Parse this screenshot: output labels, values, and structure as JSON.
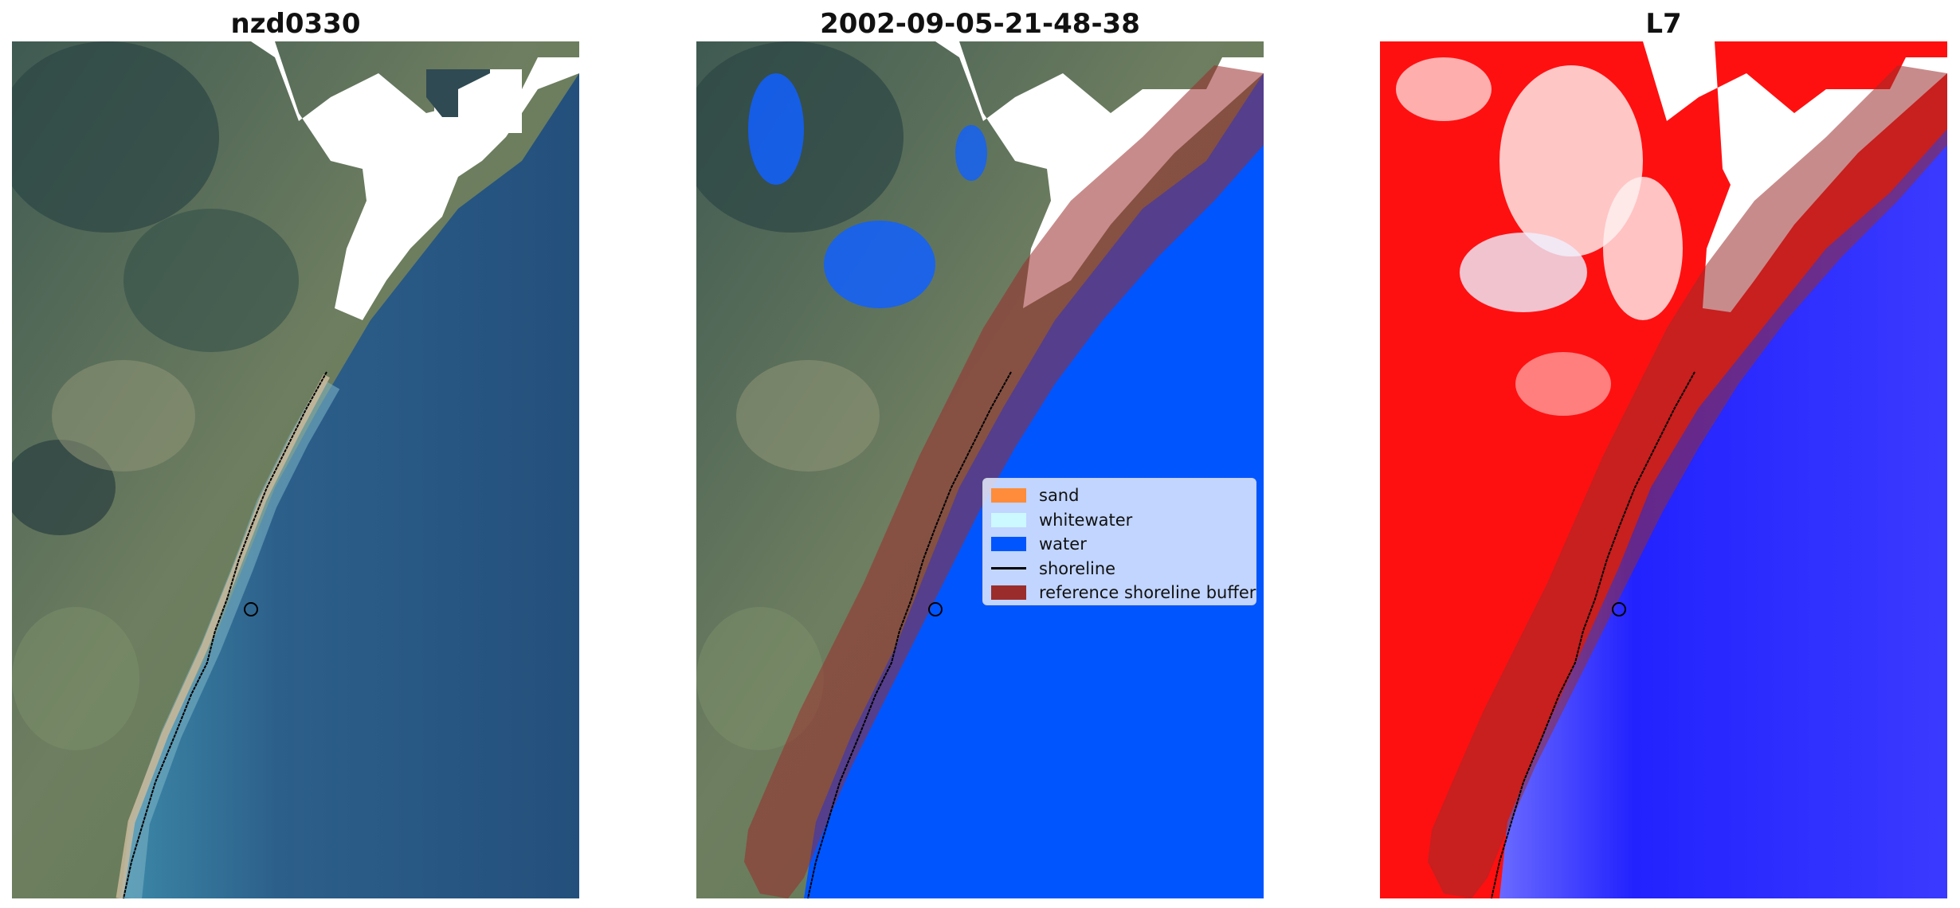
{
  "panels": [
    {
      "title": "nzd0330"
    },
    {
      "title": "2002-09-05-21-48-38"
    },
    {
      "title": "L7"
    }
  ],
  "legend": {
    "items": [
      {
        "label": "sand",
        "color": "#ff8c3a",
        "kind": "patch"
      },
      {
        "label": "whitewater",
        "color": "#ccf8ff",
        "kind": "patch"
      },
      {
        "label": "water",
        "color": "#0055ff",
        "kind": "patch"
      },
      {
        "label": "shoreline",
        "color": "#000000",
        "kind": "line"
      },
      {
        "label": "reference shoreline buffer",
        "color": "#9b2c2c",
        "kind": "patch"
      }
    ]
  },
  "colors": {
    "water_rgb": "#2f5c86",
    "land_rgb": "#5f7a5a",
    "classified_water": "#0055ff",
    "buffer": "#9b2c2c",
    "index_land": "#ff0000",
    "index_water": "#1a1aff",
    "no_data": "#ffffff"
  }
}
